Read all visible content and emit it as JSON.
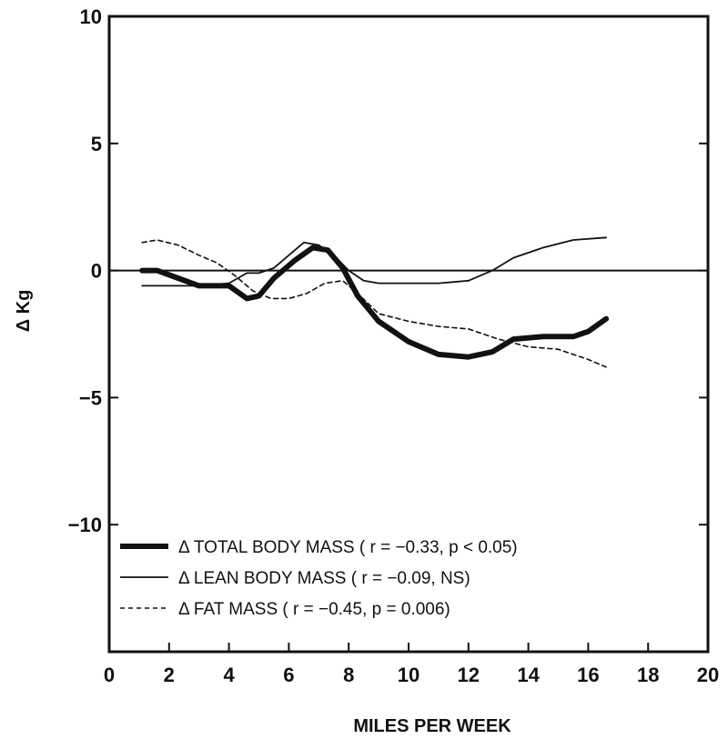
{
  "chart_data": {
    "type": "line",
    "title": "",
    "xlabel": "MILES PER WEEK",
    "ylabel": "Δ Kg",
    "xlim": [
      0,
      20
    ],
    "ylim": [
      -15,
      10
    ],
    "x_ticks": [
      0,
      2,
      4,
      6,
      8,
      10,
      12,
      14,
      16,
      18,
      20
    ],
    "y_ticks": [
      10,
      5,
      0,
      -5,
      -10
    ],
    "x_tick_labels": [
      "0",
      "2",
      "4",
      "6",
      "8",
      "10",
      "12",
      "14",
      "16",
      "18",
      "20"
    ],
    "y_tick_labels": [
      "10",
      "5",
      "0",
      "−5",
      "−10"
    ],
    "grid": false,
    "legend_position": "bottom-left",
    "series": [
      {
        "name": "Δ TOTAL BODY MASS ( r = −0.33, p < 0.05)",
        "style": "thick",
        "x": [
          1.1,
          1.6,
          2.3,
          3.0,
          4.0,
          4.6,
          5.0,
          5.5,
          6.2,
          6.8,
          7.3,
          7.8,
          8.3,
          9.0,
          10.0,
          11.0,
          12.0,
          12.8,
          13.5,
          14.5,
          15.5,
          16.0,
          16.6
        ],
        "y": [
          0.0,
          0.0,
          -0.3,
          -0.6,
          -0.6,
          -1.1,
          -1.0,
          -0.3,
          0.4,
          0.9,
          0.8,
          0.1,
          -1.0,
          -2.0,
          -2.8,
          -3.3,
          -3.4,
          -3.2,
          -2.7,
          -2.6,
          -2.6,
          -2.4,
          -1.9
        ]
      },
      {
        "name": "Δ LEAN BODY MASS ( r = −0.09, NS)",
        "style": "solid",
        "x": [
          1.1,
          2.0,
          3.0,
          4.0,
          4.6,
          5.0,
          5.5,
          6.0,
          6.5,
          7.0,
          7.5,
          8.0,
          8.5,
          9.0,
          10.0,
          11.0,
          12.0,
          12.8,
          13.5,
          14.5,
          15.5,
          16.6
        ],
        "y": [
          -0.6,
          -0.6,
          -0.6,
          -0.5,
          -0.1,
          -0.1,
          0.1,
          0.6,
          1.1,
          1.0,
          0.6,
          0.0,
          -0.4,
          -0.5,
          -0.5,
          -0.5,
          -0.4,
          0.0,
          0.5,
          0.9,
          1.2,
          1.3
        ]
      },
      {
        "name": "Δ FAT MASS ( r = −0.45, p = 0.006)",
        "style": "dashed",
        "x": [
          1.1,
          1.6,
          2.3,
          3.0,
          3.6,
          4.2,
          4.8,
          5.4,
          6.0,
          6.6,
          7.2,
          7.8,
          8.3,
          9.0,
          10.0,
          11.0,
          12.0,
          13.0,
          14.0,
          15.0,
          16.0,
          16.6
        ],
        "y": [
          1.1,
          1.2,
          1.0,
          0.6,
          0.3,
          -0.2,
          -0.8,
          -1.1,
          -1.1,
          -0.9,
          -0.5,
          -0.4,
          -0.9,
          -1.7,
          -2.0,
          -2.2,
          -2.3,
          -2.7,
          -3.0,
          -3.1,
          -3.5,
          -3.8
        ]
      }
    ]
  }
}
